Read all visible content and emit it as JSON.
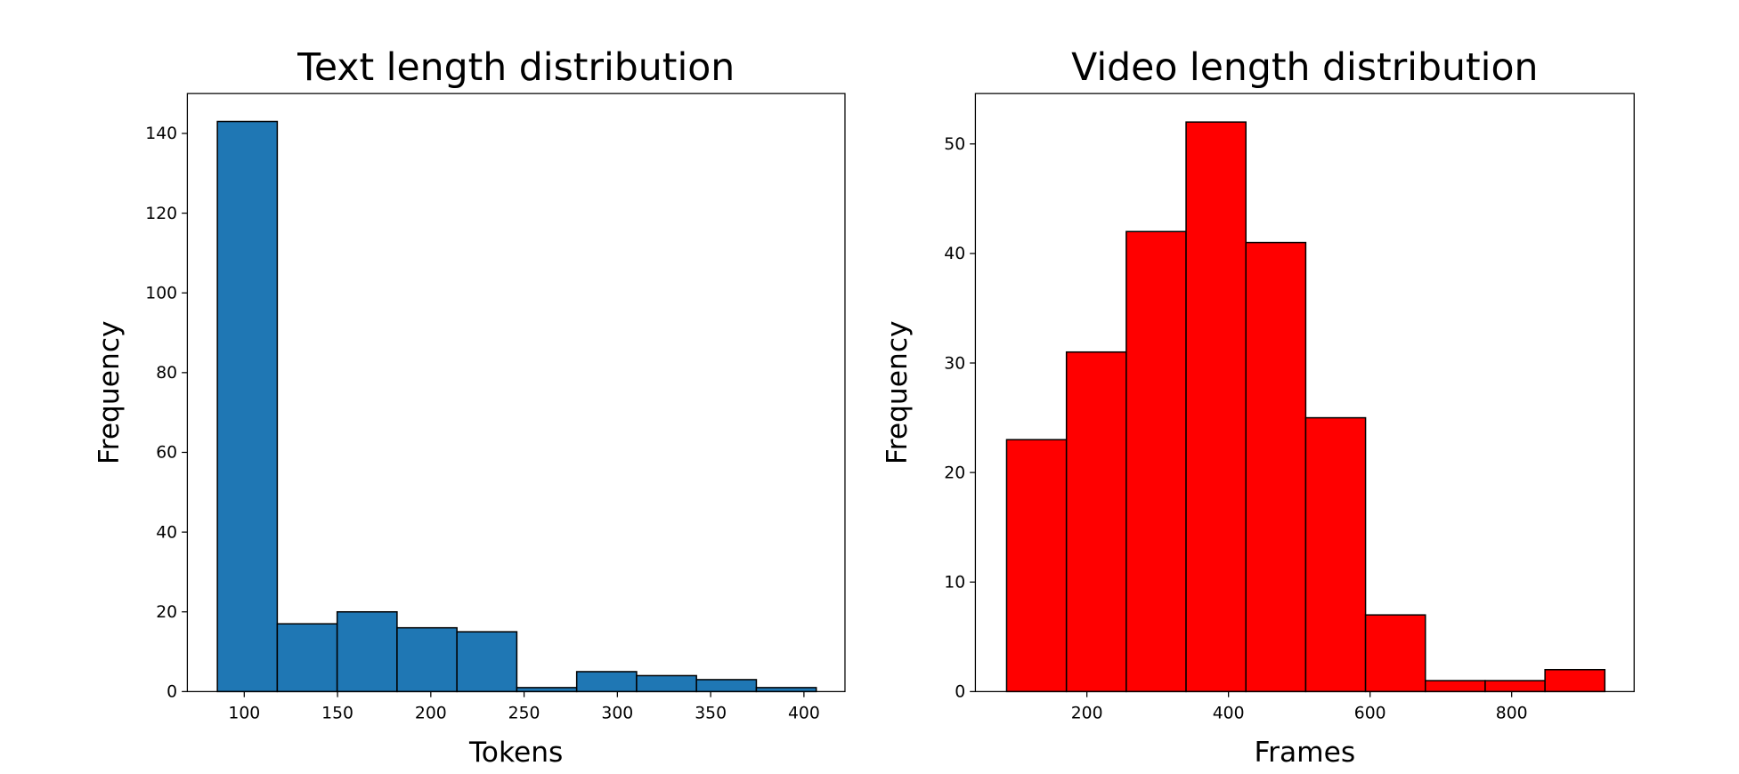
{
  "chart_data": [
    {
      "type": "histogram",
      "title": "Text length distribution",
      "x_label": "Tokens",
      "y_label": "Frequency",
      "bins": [
        85.6,
        117.7,
        149.8,
        181.9,
        214.0,
        246.1,
        278.2,
        310.3,
        342.4,
        374.5,
        406.6
      ],
      "counts": [
        143,
        17,
        20,
        16,
        15,
        1,
        5,
        4,
        3,
        1
      ],
      "color": "#1f77b4",
      "edgecolor": "#000000",
      "xlim": [
        69.5,
        422
      ],
      "ylim": [
        0,
        150
      ],
      "xticks": [
        100,
        150,
        200,
        250,
        300,
        350,
        400
      ],
      "yticks": [
        0,
        20,
        40,
        60,
        80,
        100,
        120,
        140
      ]
    },
    {
      "type": "histogram",
      "title": "Video length distribution",
      "x_label": "Frames",
      "y_label": "Frequency",
      "bins": [
        86.6,
        171.1,
        255.6,
        340.1,
        424.6,
        509.1,
        593.6,
        678.1,
        762.6,
        847.1,
        931.6
      ],
      "counts": [
        23,
        31,
        42,
        52,
        41,
        25,
        7,
        1,
        1,
        2
      ],
      "color": "#ff0000",
      "edgecolor": "#000000",
      "xlim": [
        42.5,
        973
      ],
      "ylim": [
        0,
        54.6
      ],
      "xticks": [
        200,
        400,
        600,
        800
      ],
      "yticks": [
        0,
        10,
        20,
        30,
        40,
        50
      ]
    }
  ]
}
